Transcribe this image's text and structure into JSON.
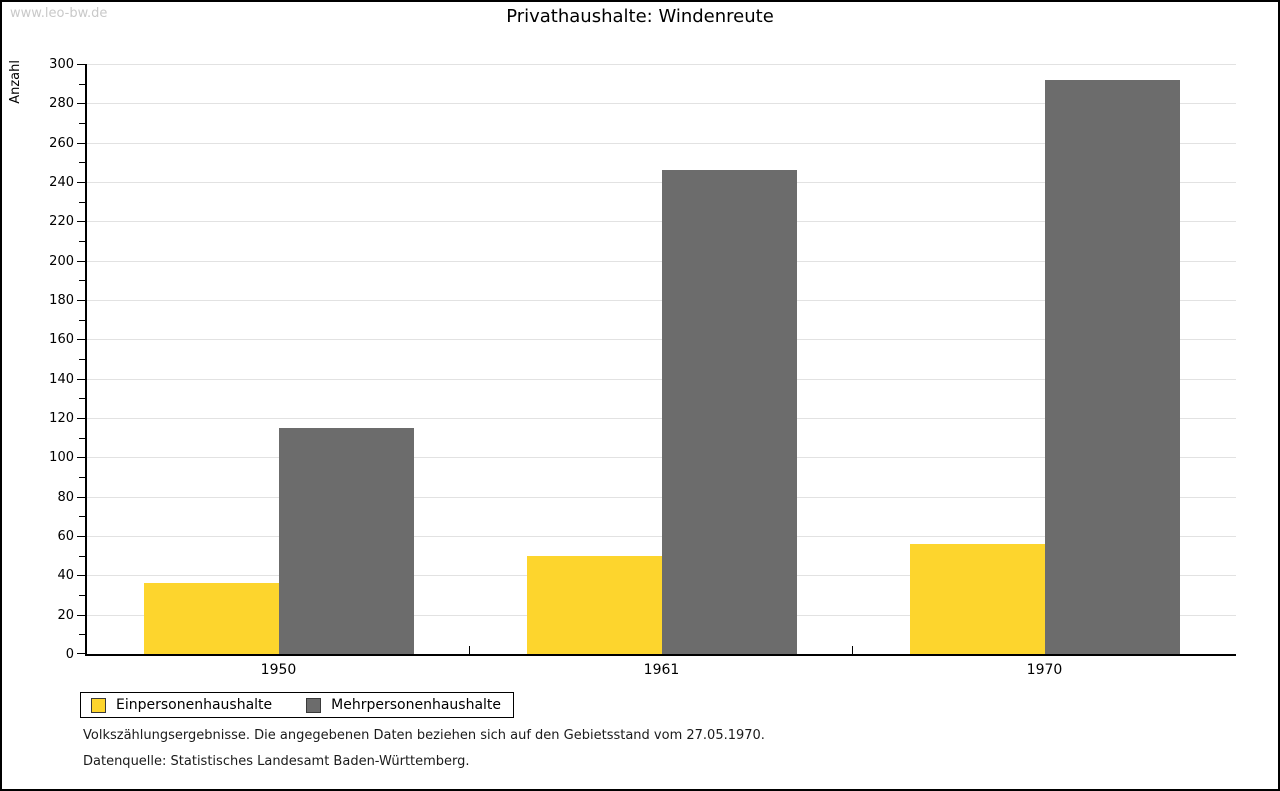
{
  "watermark": "www.leo-bw.de",
  "footnotes": [
    "Volkszählungsergebnisse. Die angegebenen Daten beziehen sich auf den Gebietsstand vom 27.05.1970.",
    "Datenquelle: Statistisches Landesamt Baden-Württemberg."
  ],
  "chart_data": {
    "type": "bar",
    "title": "Privathaushalte: Windenreute",
    "ylabel": "Anzahl",
    "xlabel": "",
    "categories": [
      "1950",
      "1961",
      "1970"
    ],
    "series": [
      {
        "name": "Einpersonenhaushalte",
        "color": "#FDD52D",
        "values": [
          36,
          50,
          56
        ]
      },
      {
        "name": "Mehrpersonenhaushalte",
        "color": "#6C6C6C",
        "values": [
          115,
          246,
          292
        ]
      }
    ],
    "ylim": [
      0,
      300
    ],
    "ytick_step": 20,
    "minor_tick_step": 10,
    "grid": true,
    "gridline_color": "#e2e2e2",
    "legend_position": "bottom-left"
  }
}
